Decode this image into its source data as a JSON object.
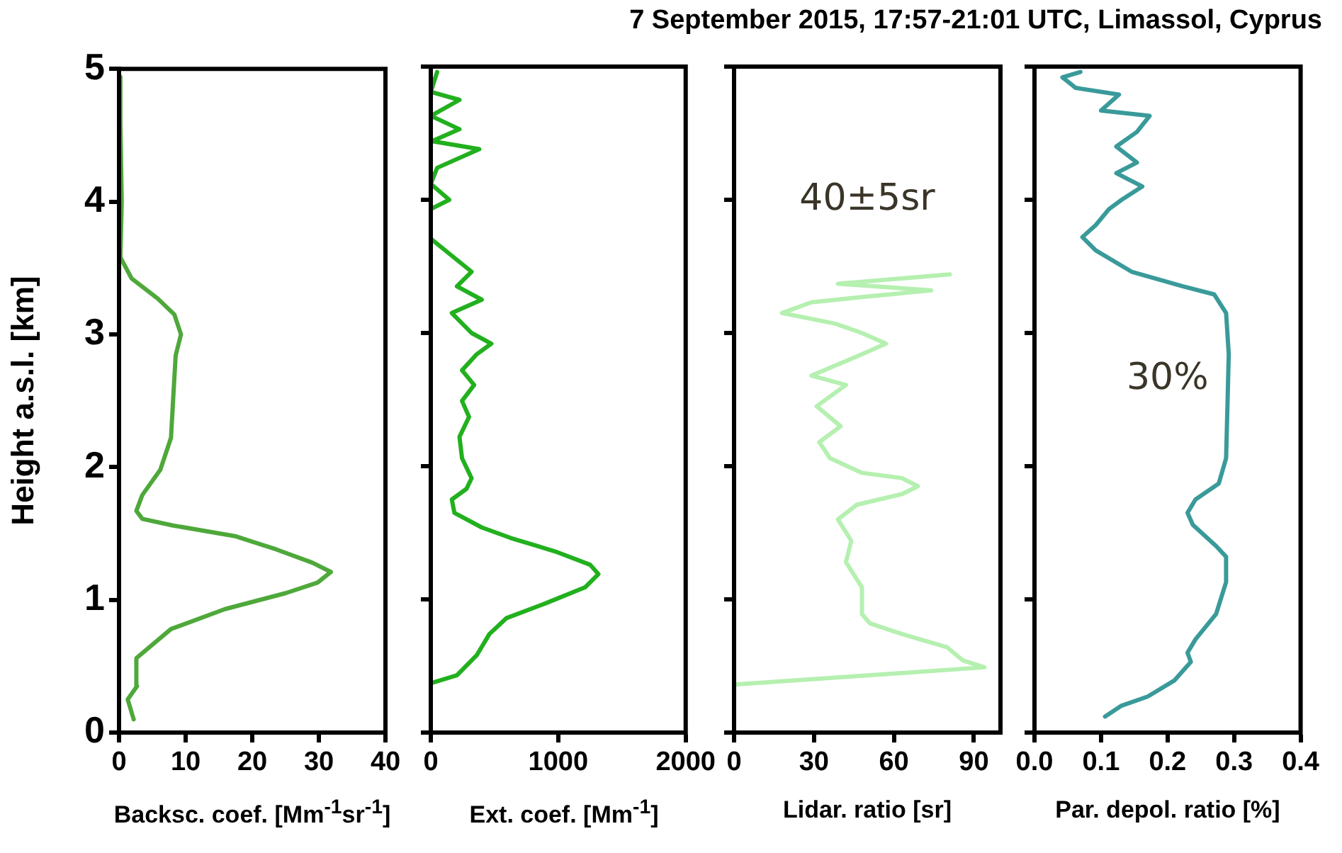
{
  "chart_data": [
    {
      "type": "line",
      "ylabel": "Height a.s.l. [km]",
      "xlabel": "Backsc. coef. [Mm$^{-1}$sr$^{-1}$]",
      "color": "#4ea83a",
      "x": [
        2.2,
        1.3,
        2.7,
        2.6,
        7.8,
        15.9,
        25,
        29.8,
        31.8,
        29,
        23.6,
        17.4,
        8.1,
        3.5,
        2.6,
        3.5,
        6.2,
        7.8,
        8.1,
        8.5,
        9.3,
        8.3,
        5.8,
        1.9,
        0.2,
        0.4,
        0.2,
        0.2
      ],
      "values": [
        0.1,
        0.25,
        0.35,
        0.56,
        0.78,
        0.93,
        1.05,
        1.13,
        1.21,
        1.28,
        1.38,
        1.48,
        1.56,
        1.61,
        1.67,
        1.79,
        1.98,
        2.22,
        2.49,
        2.84,
        3.0,
        3.15,
        3.27,
        3.42,
        3.58,
        4.0,
        4.59,
        4.94
      ],
      "xlim": [
        0,
        40
      ],
      "xticks": [
        0,
        10,
        20,
        30,
        40
      ],
      "ylim": [
        0,
        5
      ],
      "yticks": [
        0,
        1,
        2,
        3,
        4,
        5
      ],
      "grid": false,
      "legend": false
    },
    {
      "type": "line",
      "xlabel": "Ext. coef. [Mm$^{-1}$]",
      "color": "#22b01e",
      "x": [
        0,
        205,
        360,
        460,
        595,
        900,
        1210,
        1315,
        1250,
        975,
        630,
        400,
        185,
        165,
        280,
        320,
        245,
        225,
        300,
        245,
        340,
        245,
        360,
        475,
        320,
        165,
        400,
        205,
        320,
        165,
        10,
        0,
        145,
        0,
        50,
        380,
        10,
        225,
        0,
        225,
        0,
        50
      ],
      "values": [
        0.37,
        0.43,
        0.58,
        0.74,
        0.86,
        0.97,
        1.09,
        1.19,
        1.26,
        1.36,
        1.46,
        1.54,
        1.65,
        1.75,
        1.83,
        1.91,
        2.06,
        2.22,
        2.37,
        2.49,
        2.61,
        2.72,
        2.84,
        2.92,
        3.0,
        3.15,
        3.25,
        3.35,
        3.46,
        3.58,
        3.7,
        3.93,
        4.0,
        4.12,
        4.24,
        4.38,
        4.44,
        4.53,
        4.63,
        4.75,
        4.81,
        4.96
      ],
      "xlim": [
        0,
        2000
      ],
      "xticks": [
        0,
        1000,
        2000
      ],
      "ylim": [
        0,
        5
      ],
      "yticks": [
        0,
        1,
        2,
        3,
        4,
        5
      ],
      "tick_labels": "x",
      "grid": false,
      "legend": false
    },
    {
      "type": "line",
      "xlabel": "Lidar. ratio [sr]",
      "color": "#b5f0b0",
      "annotations": [
        "40±5sr"
      ],
      "x": [
        0,
        94,
        86,
        80,
        63,
        51,
        48,
        48,
        42,
        44,
        39,
        46,
        63,
        69,
        63,
        48,
        36,
        32,
        40,
        31,
        42,
        29,
        48,
        57,
        48,
        38,
        18,
        29,
        48,
        74,
        39,
        63,
        81
      ],
      "values": [
        0.36,
        0.49,
        0.54,
        0.64,
        0.74,
        0.82,
        0.89,
        1.09,
        1.28,
        1.44,
        1.6,
        1.71,
        1.79,
        1.85,
        1.91,
        1.95,
        2.06,
        2.18,
        2.3,
        2.45,
        2.61,
        2.68,
        2.84,
        2.92,
        3.0,
        3.07,
        3.15,
        3.23,
        3.27,
        3.32,
        3.37,
        3.41,
        3.44
      ],
      "xlim": [
        0,
        100
      ],
      "xticks": [
        0,
        30,
        60,
        90
      ],
      "ylim": [
        0,
        5
      ],
      "yticks": [
        0,
        1,
        2,
        3,
        4,
        5
      ],
      "tick_labels": "x",
      "grid": false,
      "legend": false
    },
    {
      "type": "line",
      "title": "7 September 2015, 17:57-21:01 UTC, Limassol, Cyprus",
      "xlabel": "Par. depol. ratio [%]",
      "color": "#3a9a9a",
      "annotations": [
        "30%"
      ],
      "x": [
        0.106,
        0.13,
        0.17,
        0.21,
        0.235,
        0.23,
        0.242,
        0.273,
        0.288,
        0.288,
        0.273,
        0.238,
        0.23,
        0.242,
        0.277,
        0.288,
        0.29,
        0.292,
        0.288,
        0.27,
        0.223,
        0.146,
        0.092,
        0.072,
        0.092,
        0.112,
        0.131,
        0.162,
        0.123,
        0.154,
        0.123,
        0.154,
        0.173,
        0.1,
        0.127,
        0.062,
        0.042,
        0.069
      ],
      "values": [
        0.12,
        0.2,
        0.27,
        0.39,
        0.53,
        0.6,
        0.7,
        0.89,
        1.13,
        1.32,
        1.4,
        1.56,
        1.65,
        1.75,
        1.87,
        2.06,
        2.45,
        2.84,
        3.15,
        3.29,
        3.35,
        3.46,
        3.62,
        3.72,
        3.81,
        3.93,
        4.0,
        4.1,
        4.2,
        4.28,
        4.4,
        4.51,
        4.63,
        4.67,
        4.79,
        4.84,
        4.92,
        4.96
      ],
      "xlim": [
        0,
        0.4
      ],
      "xticks": [
        {
          "value": 0,
          "label": "0.0"
        },
        0.1,
        0.2,
        0.3,
        0.4
      ],
      "ylim": [
        0,
        5
      ],
      "yticks": [
        0,
        1,
        2,
        3,
        4,
        5
      ],
      "tick_labels": "x",
      "grid": false,
      "legend": false
    }
  ]
}
